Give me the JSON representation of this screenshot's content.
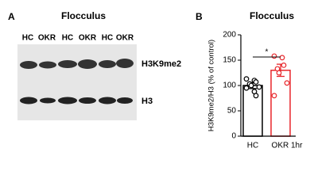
{
  "panel_a": {
    "letter": "A",
    "title": "Flocculus",
    "lanes": [
      "HC",
      "OKR",
      "HC",
      "OKR",
      "HC",
      "OKR"
    ],
    "bands": [
      "H3K9me2",
      "H3"
    ]
  },
  "chart_data": {
    "type": "bar",
    "letter": "B",
    "title": "Flocculus",
    "ylabel": "H3K9me2/H3 (% of control)",
    "categories": [
      "HC",
      "OKR 1hr"
    ],
    "values": [
      100,
      130
    ],
    "errors": [
      6,
      12
    ],
    "colors": [
      "#000000",
      "#e8262b"
    ],
    "points": [
      [
        113,
        110,
        107,
        103,
        100,
        97,
        95,
        88,
        80
      ],
      [
        158,
        155,
        140,
        133,
        125,
        105,
        80
      ]
    ],
    "significance": "*",
    "ylim": [
      0,
      200
    ],
    "yticks": [
      0,
      50,
      100,
      150,
      200
    ]
  }
}
